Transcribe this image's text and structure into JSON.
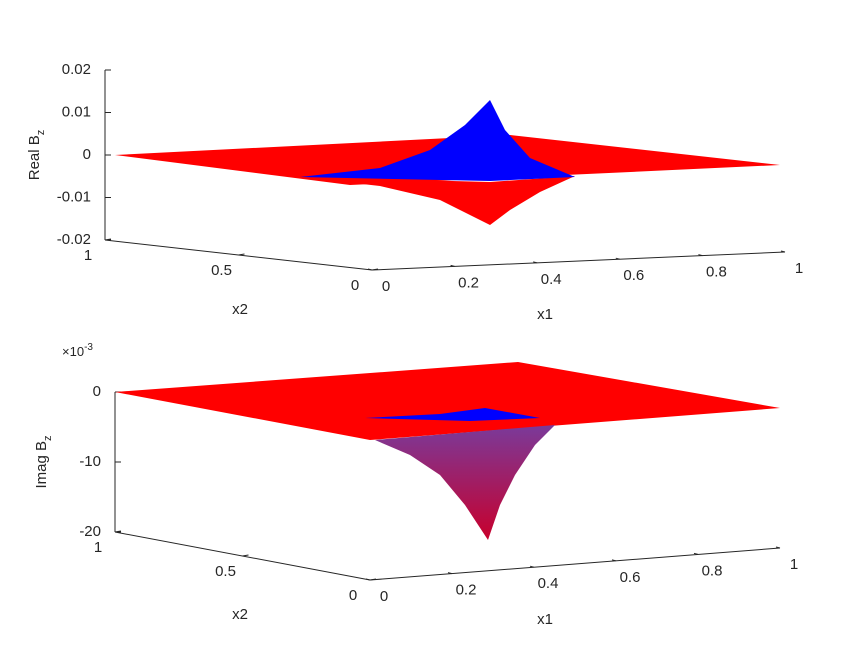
{
  "chart_data": [
    {
      "type": "surface",
      "zlabel": {
        "text": "Real B",
        "subscript": "z"
      },
      "xlabel": "x1",
      "ylabel": "x2",
      "xlim": [
        0,
        1
      ],
      "xticks": [
        0,
        0.2,
        0.4,
        0.6,
        0.8,
        1
      ],
      "ylim": [
        0,
        1
      ],
      "yticks": [
        0,
        0.5,
        1
      ],
      "zlim": [
        -0.02,
        0.02
      ],
      "zticks": [
        -0.02,
        -0.01,
        0,
        0.01,
        0.02
      ],
      "colors": [
        "#ff0000",
        "#0000ff"
      ]
    },
    {
      "type": "surface",
      "zlabel": {
        "text": "Imag B",
        "subscript": "z"
      },
      "xlabel": "x1",
      "ylabel": "x2",
      "xlim": [
        0,
        1
      ],
      "xticks": [
        0,
        0.2,
        0.4,
        0.6,
        0.8,
        1
      ],
      "ylim": [
        0,
        1
      ],
      "yticks": [
        0,
        0.5,
        1
      ],
      "zlim": [
        -0.02,
        0
      ],
      "zticks": [
        {
          "value": -0.02,
          "label": "-20"
        },
        {
          "value": -0.01,
          "label": "-10"
        },
        {
          "value": 0,
          "label": "0"
        }
      ],
      "zexponent": {
        "base": "×10",
        "power": "-3"
      },
      "colors": [
        "#ff0000",
        "#0000ff"
      ]
    }
  ]
}
